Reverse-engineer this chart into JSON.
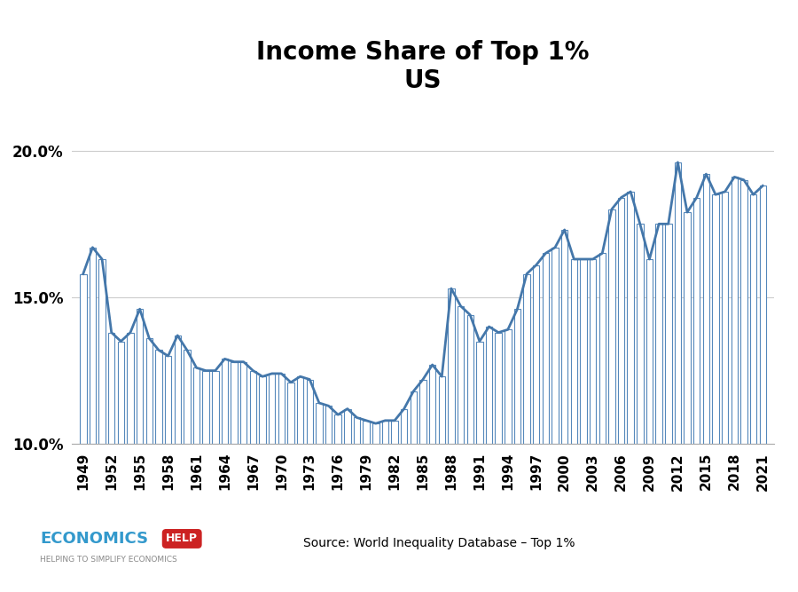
{
  "title_line1": "Income Share of Top 1%",
  "title_line2": "US",
  "source_text": "Source: World Inequality Database – Top 1%",
  "years": [
    1949,
    1950,
    1951,
    1952,
    1953,
    1954,
    1955,
    1956,
    1957,
    1958,
    1959,
    1960,
    1961,
    1962,
    1963,
    1964,
    1965,
    1966,
    1967,
    1968,
    1969,
    1970,
    1971,
    1972,
    1973,
    1974,
    1975,
    1976,
    1977,
    1978,
    1979,
    1980,
    1981,
    1982,
    1983,
    1984,
    1985,
    1986,
    1987,
    1988,
    1989,
    1990,
    1991,
    1992,
    1993,
    1994,
    1995,
    1996,
    1997,
    1998,
    1999,
    2000,
    2001,
    2002,
    2003,
    2004,
    2005,
    2006,
    2007,
    2008,
    2009,
    2010,
    2011,
    2012,
    2013,
    2014,
    2015,
    2016,
    2017,
    2018,
    2019,
    2020,
    2021
  ],
  "values": [
    0.158,
    0.167,
    0.163,
    0.138,
    0.135,
    0.138,
    0.146,
    0.136,
    0.132,
    0.13,
    0.137,
    0.132,
    0.126,
    0.125,
    0.125,
    0.129,
    0.128,
    0.128,
    0.125,
    0.123,
    0.124,
    0.124,
    0.121,
    0.123,
    0.122,
    0.114,
    0.113,
    0.11,
    0.112,
    0.109,
    0.108,
    0.107,
    0.108,
    0.108,
    0.112,
    0.118,
    0.122,
    0.127,
    0.123,
    0.153,
    0.147,
    0.144,
    0.135,
    0.14,
    0.138,
    0.139,
    0.146,
    0.158,
    0.161,
    0.165,
    0.167,
    0.173,
    0.163,
    0.163,
    0.163,
    0.165,
    0.18,
    0.184,
    0.186,
    0.175,
    0.163,
    0.175,
    0.175,
    0.196,
    0.179,
    0.184,
    0.192,
    0.185,
    0.186,
    0.191,
    0.19,
    0.185,
    0.188
  ],
  "bar_color": "#ffffff",
  "bar_edge_color": "#5588bb",
  "line_color": "#4477aa",
  "ylim_min": 0.1,
  "ylim_max": 0.215,
  "yticks": [
    0.1,
    0.15,
    0.2
  ],
  "ytick_labels": [
    "10.0%",
    "15.0%",
    "20.0%"
  ],
  "xtick_years": [
    1949,
    1952,
    1955,
    1958,
    1961,
    1964,
    1967,
    1970,
    1973,
    1976,
    1979,
    1982,
    1985,
    1988,
    1991,
    1994,
    1997,
    2000,
    2003,
    2006,
    2009,
    2012,
    2015,
    2018,
    2021
  ],
  "background_color": "#ffffff",
  "title_fontsize": 20,
  "economics_color": "#3399cc",
  "help_bg_color": "#cc2222",
  "subtitle_color": "#888888"
}
